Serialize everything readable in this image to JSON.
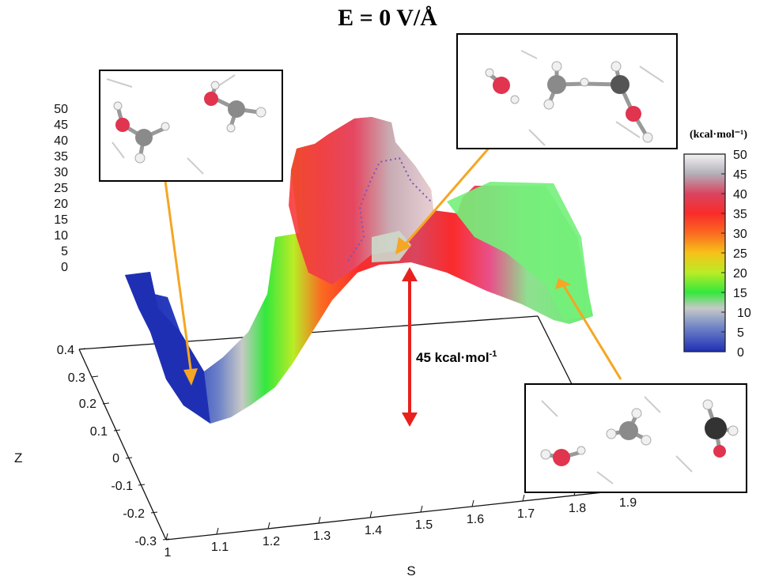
{
  "title": "E = 0 V/Å",
  "chart_data": {
    "type": "surface",
    "x_axis": {
      "label": "S",
      "ticks": [
        "1",
        "1.1",
        "1.2",
        "1.3",
        "1.4",
        "1.5",
        "1.6",
        "1.7",
        "1.8",
        "1.9"
      ],
      "range": [
        1.0,
        1.9
      ]
    },
    "z_axis": {
      "label": "Z",
      "ticks": [
        "0.4",
        "0.3",
        "0.2",
        "0.1",
        "0",
        "-0.1",
        "-0.2",
        "-0.3"
      ],
      "range": [
        -0.3,
        0.4
      ]
    },
    "energy_axis": {
      "ticks": [
        "50",
        "45",
        "40",
        "35",
        "30",
        "25",
        "20",
        "15",
        "10",
        "5",
        "0"
      ],
      "range": [
        0,
        50
      ]
    },
    "colorbar": {
      "title": "(kcal·mol⁻¹)",
      "ticks": [
        "50",
        "45",
        "40",
        "35",
        "30",
        "25",
        "20",
        "15",
        "10",
        "5",
        "0"
      ],
      "colors": [
        "#f2f2f2",
        "#b3aeb8",
        "#d9455f",
        "#fa2b2b",
        "#fb6a21",
        "#f6c218",
        "#b9ec26",
        "#33e83d",
        "#c7c9c7",
        "#6d82c7",
        "#1f2fb4"
      ]
    },
    "profile": {
      "s": [
        1.02,
        1.1,
        1.2,
        1.3,
        1.4,
        1.5,
        1.6,
        1.7,
        1.8,
        1.86
      ],
      "energy": [
        0,
        2,
        10,
        25,
        40,
        45,
        30,
        18,
        14,
        12
      ]
    },
    "annotations": {
      "barrier_label": "45 kcal·mol",
      "barrier_sup": "-1",
      "barrier_value": 45
    }
  },
  "colors": {
    "arrow_orange": "#f5a623",
    "arrow_red": "#e8211d",
    "oxygen": "#e0344f",
    "carbon": "#8a8a8a",
    "hydrogen": "#f0f0f0"
  },
  "insets": [
    {
      "name": "reactant-inset",
      "icon": "molecule-reactant-icon"
    },
    {
      "name": "transition-state-inset",
      "icon": "molecule-transition-state-icon"
    },
    {
      "name": "product-inset",
      "icon": "molecule-product-icon"
    }
  ]
}
